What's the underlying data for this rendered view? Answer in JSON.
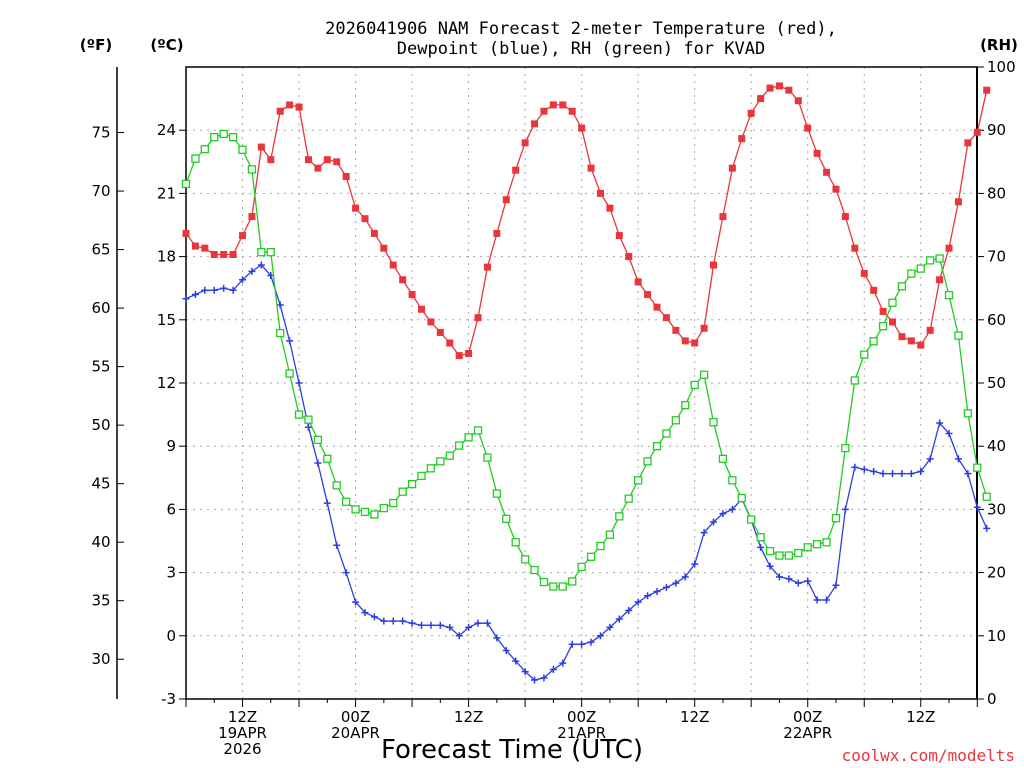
{
  "title_line1": "2026041906 NAM Forecast 2-meter Temperature (red),",
  "title_line2": "Dewpoint (blue), RH (green) for KVAD",
  "unit_f": "(ºF)",
  "unit_c": "(ºC)",
  "unit_rh": "(RH)",
  "xlabel": "Forecast Time (UTC)",
  "credit": "coolwx.com/modelts",
  "colors": {
    "temperature": "#e8363b",
    "dewpoint": "#2b3ee0",
    "rh": "#22cc22",
    "grid": "#aaaaaa",
    "credit": "#e8363b"
  },
  "chart_data": {
    "type": "line",
    "x_unit": "forecast hour from 2026-04-19 06Z",
    "xlim": [
      0,
      84
    ],
    "ylim_c": [
      -3,
      27
    ],
    "ylim_rh": [
      0,
      100
    ],
    "left_c_ticks": [
      "-3",
      "0",
      "3",
      "6",
      "9",
      "12",
      "15",
      "18",
      "21",
      "24"
    ],
    "left_f_ticks": [
      "30",
      "35",
      "40",
      "45",
      "50",
      "55",
      "60",
      "65",
      "70",
      "75"
    ],
    "right_rh_ticks": [
      "0",
      "10",
      "20",
      "30",
      "40",
      "50",
      "60",
      "70",
      "80",
      "90",
      "100"
    ],
    "x_ticks": [
      {
        "hour": 6,
        "line1": "12Z",
        "line2": "19APR",
        "line3": "2026"
      },
      {
        "hour": 18,
        "line1": "00Z",
        "line2": "20APR",
        "line3": ""
      },
      {
        "hour": 30,
        "line1": "12Z",
        "line2": "",
        "line3": ""
      },
      {
        "hour": 42,
        "line1": "00Z",
        "line2": "21APR",
        "line3": ""
      },
      {
        "hour": 54,
        "line1": "12Z",
        "line2": "",
        "line3": ""
      },
      {
        "hour": 66,
        "line1": "00Z",
        "line2": "22APR",
        "line3": ""
      },
      {
        "hour": 78,
        "line1": "12Z",
        "line2": "",
        "line3": ""
      }
    ],
    "grid": true,
    "series": [
      {
        "key": "temperature",
        "axis": "C",
        "marker": "filled-square",
        "points": [
          [
            0,
            19.1
          ],
          [
            1,
            18.5
          ],
          [
            2,
            18.4
          ],
          [
            3,
            18.1
          ],
          [
            4,
            18.1
          ],
          [
            5,
            18.1
          ],
          [
            6,
            19.0
          ],
          [
            7,
            19.9
          ],
          [
            8,
            23.2
          ],
          [
            9,
            22.6
          ],
          [
            10,
            24.9
          ],
          [
            11,
            25.2
          ],
          [
            12,
            25.1
          ],
          [
            13,
            22.6
          ],
          [
            14,
            22.2
          ],
          [
            15,
            22.6
          ],
          [
            16,
            22.5
          ],
          [
            17,
            21.8
          ],
          [
            18,
            20.3
          ],
          [
            19,
            19.8
          ],
          [
            20,
            19.1
          ],
          [
            21,
            18.4
          ],
          [
            22,
            17.6
          ],
          [
            23,
            16.9
          ],
          [
            24,
            16.2
          ],
          [
            25,
            15.5
          ],
          [
            26,
            14.9
          ],
          [
            27,
            14.4
          ],
          [
            28,
            13.9
          ],
          [
            29,
            13.3
          ],
          [
            30,
            13.4
          ],
          [
            31,
            15.1
          ],
          [
            32,
            17.5
          ],
          [
            33,
            19.1
          ],
          [
            34,
            20.7
          ],
          [
            35,
            22.1
          ],
          [
            36,
            23.4
          ],
          [
            37,
            24.3
          ],
          [
            38,
            24.9
          ],
          [
            39,
            25.2
          ],
          [
            40,
            25.2
          ],
          [
            41,
            24.9
          ],
          [
            42,
            24.1
          ],
          [
            43,
            22.2
          ],
          [
            44,
            21.0
          ],
          [
            45,
            20.3
          ],
          [
            46,
            19.0
          ],
          [
            47,
            18.0
          ],
          [
            48,
            16.8
          ],
          [
            49,
            16.2
          ],
          [
            50,
            15.6
          ],
          [
            51,
            15.1
          ],
          [
            52,
            14.5
          ],
          [
            53,
            14.0
          ],
          [
            54,
            13.9
          ],
          [
            55,
            14.6
          ],
          [
            56,
            17.6
          ],
          [
            57,
            19.9
          ],
          [
            58,
            22.2
          ],
          [
            59,
            23.6
          ],
          [
            60,
            24.8
          ],
          [
            61,
            25.5
          ],
          [
            62,
            26.0
          ],
          [
            63,
            26.1
          ],
          [
            64,
            25.9
          ],
          [
            65,
            25.4
          ],
          [
            66,
            24.1
          ],
          [
            67,
            22.9
          ],
          [
            68,
            22.0
          ],
          [
            69,
            21.2
          ],
          [
            70,
            19.9
          ],
          [
            71,
            18.4
          ],
          [
            72,
            17.2
          ],
          [
            73,
            16.4
          ],
          [
            74,
            15.4
          ],
          [
            75,
            14.9
          ],
          [
            76,
            14.2
          ],
          [
            77,
            14.0
          ],
          [
            78,
            13.8
          ],
          [
            79,
            14.5
          ],
          [
            80,
            16.9
          ],
          [
            81,
            18.4
          ],
          [
            82,
            20.6
          ],
          [
            83,
            23.4
          ],
          [
            84,
            23.9
          ],
          [
            85,
            25.9
          ]
        ]
      },
      {
        "key": "dewpoint",
        "axis": "C",
        "marker": "plus",
        "points": [
          [
            0,
            16.0
          ],
          [
            1,
            16.2
          ],
          [
            2,
            16.4
          ],
          [
            3,
            16.4
          ],
          [
            4,
            16.5
          ],
          [
            5,
            16.4
          ],
          [
            6,
            16.9
          ],
          [
            7,
            17.3
          ],
          [
            8,
            17.6
          ],
          [
            9,
            17.1
          ],
          [
            10,
            15.7
          ],
          [
            11,
            14.0
          ],
          [
            12,
            12.0
          ],
          [
            13,
            9.9
          ],
          [
            14,
            8.2
          ],
          [
            15,
            6.3
          ],
          [
            16,
            4.3
          ],
          [
            17,
            3.0
          ],
          [
            18,
            1.6
          ],
          [
            19,
            1.1
          ],
          [
            20,
            0.9
          ],
          [
            21,
            0.7
          ],
          [
            22,
            0.7
          ],
          [
            23,
            0.7
          ],
          [
            24,
            0.6
          ],
          [
            25,
            0.5
          ],
          [
            26,
            0.5
          ],
          [
            27,
            0.5
          ],
          [
            28,
            0.4
          ],
          [
            29,
            0.0
          ],
          [
            30,
            0.4
          ],
          [
            31,
            0.6
          ],
          [
            32,
            0.6
          ],
          [
            33,
            -0.1
          ],
          [
            34,
            -0.7
          ],
          [
            35,
            -1.2
          ],
          [
            36,
            -1.7
          ],
          [
            37,
            -2.1
          ],
          [
            38,
            -2.0
          ],
          [
            39,
            -1.6
          ],
          [
            40,
            -1.3
          ],
          [
            41,
            -0.4
          ],
          [
            42,
            -0.4
          ],
          [
            43,
            -0.3
          ],
          [
            44,
            0.0
          ],
          [
            45,
            0.4
          ],
          [
            46,
            0.8
          ],
          [
            47,
            1.2
          ],
          [
            48,
            1.6
          ],
          [
            49,
            1.9
          ],
          [
            50,
            2.1
          ],
          [
            51,
            2.3
          ],
          [
            52,
            2.5
          ],
          [
            53,
            2.8
          ],
          [
            54,
            3.4
          ],
          [
            55,
            4.9
          ],
          [
            56,
            5.4
          ],
          [
            57,
            5.8
          ],
          [
            58,
            6.0
          ],
          [
            59,
            6.5
          ],
          [
            60,
            5.5
          ],
          [
            61,
            4.2
          ],
          [
            62,
            3.3
          ],
          [
            63,
            2.8
          ],
          [
            64,
            2.7
          ],
          [
            65,
            2.5
          ],
          [
            66,
            2.6
          ],
          [
            67,
            1.7
          ],
          [
            68,
            1.7
          ],
          [
            69,
            2.4
          ],
          [
            70,
            6.0
          ],
          [
            71,
            8.0
          ],
          [
            72,
            7.9
          ],
          [
            73,
            7.8
          ],
          [
            74,
            7.7
          ],
          [
            75,
            7.7
          ],
          [
            76,
            7.7
          ],
          [
            77,
            7.7
          ],
          [
            78,
            7.8
          ],
          [
            79,
            8.4
          ],
          [
            80,
            10.1
          ],
          [
            81,
            9.6
          ],
          [
            82,
            8.4
          ],
          [
            83,
            7.7
          ],
          [
            84,
            6.1
          ],
          [
            85,
            5.1
          ]
        ]
      },
      {
        "key": "rh",
        "axis": "RH",
        "marker": "open-square",
        "points": [
          [
            0,
            81.5
          ],
          [
            1,
            85.5
          ],
          [
            2,
            87.0
          ],
          [
            3,
            88.9
          ],
          [
            4,
            89.4
          ],
          [
            5,
            88.9
          ],
          [
            6,
            86.9
          ],
          [
            7,
            83.8
          ],
          [
            8,
            70.7
          ],
          [
            9,
            70.7
          ],
          [
            10,
            57.9
          ],
          [
            11,
            51.5
          ],
          [
            12,
            45.0
          ],
          [
            13,
            44.2
          ],
          [
            14,
            41.0
          ],
          [
            15,
            38.0
          ],
          [
            16,
            33.8
          ],
          [
            17,
            31.2
          ],
          [
            18,
            30.0
          ],
          [
            19,
            29.6
          ],
          [
            20,
            29.2
          ],
          [
            21,
            30.2
          ],
          [
            22,
            31.0
          ],
          [
            23,
            32.8
          ],
          [
            24,
            34.0
          ],
          [
            25,
            35.3
          ],
          [
            26,
            36.5
          ],
          [
            27,
            37.6
          ],
          [
            28,
            38.5
          ],
          [
            29,
            40.1
          ],
          [
            30,
            41.4
          ],
          [
            31,
            42.5
          ],
          [
            32,
            38.2
          ],
          [
            33,
            32.5
          ],
          [
            34,
            28.5
          ],
          [
            35,
            24.8
          ],
          [
            36,
            22.1
          ],
          [
            37,
            20.4
          ],
          [
            38,
            18.5
          ],
          [
            39,
            17.8
          ],
          [
            40,
            17.8
          ],
          [
            41,
            18.6
          ],
          [
            42,
            20.9
          ],
          [
            43,
            22.5
          ],
          [
            44,
            24.2
          ],
          [
            45,
            26.0
          ],
          [
            46,
            28.9
          ],
          [
            47,
            31.7
          ],
          [
            48,
            34.6
          ],
          [
            49,
            37.6
          ],
          [
            50,
            40.0
          ],
          [
            51,
            42.0
          ],
          [
            52,
            44.1
          ],
          [
            53,
            46.5
          ],
          [
            54,
            49.7
          ],
          [
            55,
            51.3
          ],
          [
            56,
            43.8
          ],
          [
            57,
            38.0
          ],
          [
            58,
            34.6
          ],
          [
            59,
            31.8
          ],
          [
            60,
            28.4
          ],
          [
            61,
            25.6
          ],
          [
            62,
            23.4
          ],
          [
            63,
            22.7
          ],
          [
            64,
            22.7
          ],
          [
            65,
            23.1
          ],
          [
            66,
            24.0
          ],
          [
            67,
            24.5
          ],
          [
            68,
            24.8
          ],
          [
            69,
            28.6
          ],
          [
            70,
            39.7
          ],
          [
            71,
            50.4
          ],
          [
            72,
            54.5
          ],
          [
            73,
            56.6
          ],
          [
            74,
            59.0
          ],
          [
            75,
            62.7
          ],
          [
            76,
            65.3
          ],
          [
            77,
            67.3
          ],
          [
            78,
            68.1
          ],
          [
            79,
            69.4
          ],
          [
            80,
            69.7
          ],
          [
            81,
            63.9
          ],
          [
            82,
            57.5
          ],
          [
            83,
            45.2
          ],
          [
            84,
            36.6
          ],
          [
            85,
            32.0
          ]
        ]
      }
    ]
  }
}
